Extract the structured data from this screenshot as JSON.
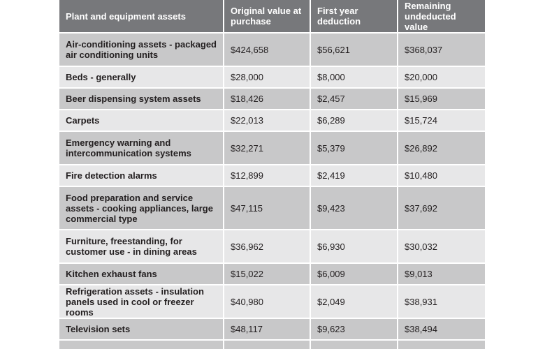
{
  "table": {
    "headers": [
      "Plant and equipment assets",
      "Original value at purchase",
      "First year deduction",
      "Remaining undeducted value"
    ],
    "rows": [
      [
        "Air-conditioning assets - packaged air conditioning units",
        "$424,658",
        "$56,621",
        "$368,037"
      ],
      [
        "Beds - generally",
        "$28,000",
        "$8,000",
        "$20,000"
      ],
      [
        "Beer dispensing system assets",
        "$18,426",
        "$2,457",
        "$15,969"
      ],
      [
        "Carpets",
        "$22,013",
        "$6,289",
        "$15,724"
      ],
      [
        "Emergency warning and intercommunication systems",
        "$32,271",
        "$5,379",
        "$26,892"
      ],
      [
        "Fire detection alarms",
        "$12,899",
        "$2,419",
        "$10,480"
      ],
      [
        "Food preparation and service assets - cooking appliances, large commercial type",
        "$47,115",
        "$9,423",
        "$37,692"
      ],
      [
        "Furniture, freestanding, for customer use - in dining areas",
        "$36,962",
        "$6,930",
        "$30,032"
      ],
      [
        "Kitchen exhaust fans",
        "$15,022",
        "$6,009",
        "$9,013"
      ],
      [
        "Refrigeration assets - insulation panels used in cool or freezer rooms",
        "$40,980",
        "$2,049",
        "$38,931"
      ],
      [
        "Television sets",
        "$48,117",
        "$9,623",
        "$38,494"
      ]
    ]
  }
}
